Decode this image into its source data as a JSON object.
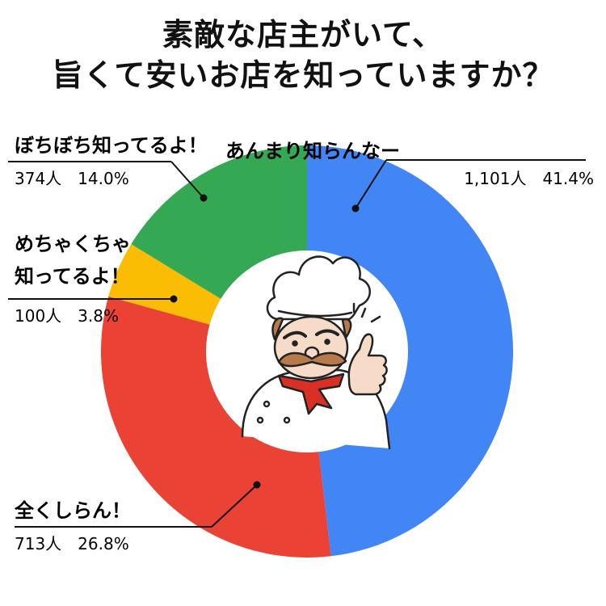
{
  "title_lines": [
    "素敵な店主がいて、",
    "旨くて安いお店を知っていますか？"
  ],
  "chart_data": {
    "type": "pie",
    "title": "素敵な店主がいて、旨くて安いお店を知っていますか？",
    "slices": [
      {
        "label": "あんまり知らんなー",
        "count_label": "1,101人",
        "percent_label": "41.4%",
        "value": 41.4,
        "color": "#4285f4"
      },
      {
        "label": "全くしらん！",
        "count_label": "713人",
        "percent_label": "26.8%",
        "value": 26.8,
        "color": "#ea4335"
      },
      {
        "label": "めちゃくちゃ知ってるよ！",
        "label_lines": [
          "めちゃくちゃ",
          "知ってるよ！"
        ],
        "count_label": "100人",
        "percent_label": "3.8%",
        "value": 3.8,
        "color": "#fbbc04"
      },
      {
        "label": "ぼちぼち知ってるよ！",
        "count_label": "374人",
        "percent_label": "14.0%",
        "value": 14.0,
        "color": "#34a853"
      }
    ],
    "start_angle_deg": 0,
    "direction": "clockwise",
    "center_image": "chef-thumbs-up-illustration"
  }
}
